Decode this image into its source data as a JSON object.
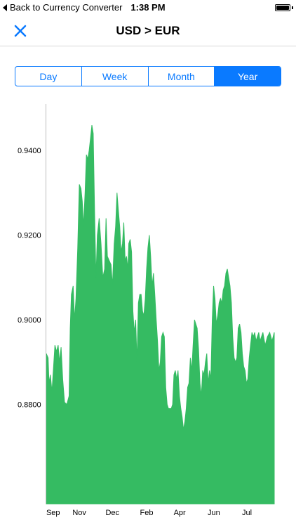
{
  "status_bar": {
    "back_label": "Back to Currency Converter",
    "time": "1:38 PM"
  },
  "nav": {
    "title": "USD > EUR"
  },
  "segments": [
    {
      "label": "Day",
      "selected": false
    },
    {
      "label": "Week",
      "selected": false
    },
    {
      "label": "Month",
      "selected": false
    },
    {
      "label": "Year",
      "selected": true
    }
  ],
  "colors": {
    "accent": "#0a7aff",
    "area_fill": "#35bb62"
  },
  "chart_data": {
    "type": "area",
    "y_ticks": [
      "0.9400",
      "0.9200",
      "0.9000",
      "0.8800"
    ],
    "y_tick_values": [
      0.94,
      0.92,
      0.9,
      0.88
    ],
    "ylim": [
      0.8565,
      0.951
    ],
    "x_ticks": [
      "Sep",
      "Nov",
      "Dec",
      "Feb",
      "Apr",
      "Jun",
      "Jul"
    ],
    "x_tick_positions": [
      0.03,
      0.145,
      0.29,
      0.44,
      0.585,
      0.735,
      0.88
    ],
    "series": [
      {
        "points": [
          [
            0.0,
            0.892
          ],
          [
            0.008,
            0.891
          ],
          [
            0.012,
            0.885
          ],
          [
            0.018,
            0.887
          ],
          [
            0.025,
            0.883
          ],
          [
            0.032,
            0.889
          ],
          [
            0.038,
            0.894
          ],
          [
            0.045,
            0.8925
          ],
          [
            0.052,
            0.894
          ],
          [
            0.058,
            0.89
          ],
          [
            0.065,
            0.8935
          ],
          [
            0.072,
            0.886
          ],
          [
            0.08,
            0.8805
          ],
          [
            0.09,
            0.88
          ],
          [
            0.1,
            0.882
          ],
          [
            0.105,
            0.898
          ],
          [
            0.11,
            0.906
          ],
          [
            0.118,
            0.908
          ],
          [
            0.124,
            0.9
          ],
          [
            0.13,
            0.905
          ],
          [
            0.138,
            0.917
          ],
          [
            0.145,
            0.932
          ],
          [
            0.152,
            0.931
          ],
          [
            0.158,
            0.928
          ],
          [
            0.163,
            0.922
          ],
          [
            0.17,
            0.93
          ],
          [
            0.176,
            0.939
          ],
          [
            0.182,
            0.938
          ],
          [
            0.188,
            0.94
          ],
          [
            0.194,
            0.943
          ],
          [
            0.2,
            0.946
          ],
          [
            0.206,
            0.944
          ],
          [
            0.212,
            0.925
          ],
          [
            0.218,
            0.91
          ],
          [
            0.224,
            0.92
          ],
          [
            0.232,
            0.924
          ],
          [
            0.24,
            0.918
          ],
          [
            0.248,
            0.91
          ],
          [
            0.256,
            0.912
          ],
          [
            0.262,
            0.924
          ],
          [
            0.268,
            0.915
          ],
          [
            0.276,
            0.914
          ],
          [
            0.284,
            0.913
          ],
          [
            0.29,
            0.908
          ],
          [
            0.298,
            0.918
          ],
          [
            0.304,
            0.922
          ],
          [
            0.31,
            0.93
          ],
          [
            0.316,
            0.926
          ],
          [
            0.322,
            0.922
          ],
          [
            0.328,
            0.916
          ],
          [
            0.334,
            0.918
          ],
          [
            0.34,
            0.923
          ],
          [
            0.346,
            0.914
          ],
          [
            0.352,
            0.915
          ],
          [
            0.358,
            0.912
          ],
          [
            0.362,
            0.918
          ],
          [
            0.368,
            0.919
          ],
          [
            0.374,
            0.916
          ],
          [
            0.38,
            0.902
          ],
          [
            0.386,
            0.897
          ],
          [
            0.392,
            0.9
          ],
          [
            0.398,
            0.89
          ],
          [
            0.404,
            0.904
          ],
          [
            0.41,
            0.906
          ],
          [
            0.416,
            0.906
          ],
          [
            0.422,
            0.902
          ],
          [
            0.428,
            0.901
          ],
          [
            0.434,
            0.905
          ],
          [
            0.44,
            0.912
          ],
          [
            0.446,
            0.917
          ],
          [
            0.452,
            0.92
          ],
          [
            0.458,
            0.915
          ],
          [
            0.464,
            0.908
          ],
          [
            0.47,
            0.911
          ],
          [
            0.476,
            0.906
          ],
          [
            0.482,
            0.9
          ],
          [
            0.488,
            0.895
          ],
          [
            0.494,
            0.888
          ],
          [
            0.5,
            0.89
          ],
          [
            0.506,
            0.896
          ],
          [
            0.512,
            0.897
          ],
          [
            0.518,
            0.896
          ],
          [
            0.524,
            0.884
          ],
          [
            0.53,
            0.88
          ],
          [
            0.536,
            0.879
          ],
          [
            0.542,
            0.879
          ],
          [
            0.548,
            0.879
          ],
          [
            0.554,
            0.88
          ],
          [
            0.56,
            0.887
          ],
          [
            0.566,
            0.888
          ],
          [
            0.572,
            0.886
          ],
          [
            0.578,
            0.888
          ],
          [
            0.584,
            0.882
          ],
          [
            0.59,
            0.879
          ],
          [
            0.596,
            0.877
          ],
          [
            0.602,
            0.874
          ],
          [
            0.608,
            0.876
          ],
          [
            0.614,
            0.879
          ],
          [
            0.62,
            0.884
          ],
          [
            0.626,
            0.885
          ],
          [
            0.632,
            0.891
          ],
          [
            0.638,
            0.888
          ],
          [
            0.644,
            0.894
          ],
          [
            0.65,
            0.9
          ],
          [
            0.656,
            0.899
          ],
          [
            0.662,
            0.898
          ],
          [
            0.668,
            0.893
          ],
          [
            0.674,
            0.885
          ],
          [
            0.68,
            0.882
          ],
          [
            0.686,
            0.888
          ],
          [
            0.692,
            0.887
          ],
          [
            0.698,
            0.89
          ],
          [
            0.704,
            0.892
          ],
          [
            0.71,
            0.885
          ],
          [
            0.716,
            0.888
          ],
          [
            0.722,
            0.886
          ],
          [
            0.728,
            0.9
          ],
          [
            0.734,
            0.908
          ],
          [
            0.74,
            0.905
          ],
          [
            0.746,
            0.899
          ],
          [
            0.752,
            0.901
          ],
          [
            0.758,
            0.904
          ],
          [
            0.764,
            0.905
          ],
          [
            0.77,
            0.904
          ],
          [
            0.776,
            0.907
          ],
          [
            0.782,
            0.908
          ],
          [
            0.788,
            0.911
          ],
          [
            0.794,
            0.912
          ],
          [
            0.8,
            0.91
          ],
          [
            0.806,
            0.908
          ],
          [
            0.812,
            0.904
          ],
          [
            0.818,
            0.896
          ],
          [
            0.824,
            0.891
          ],
          [
            0.83,
            0.89
          ],
          [
            0.836,
            0.891
          ],
          [
            0.842,
            0.898
          ],
          [
            0.848,
            0.899
          ],
          [
            0.854,
            0.897
          ],
          [
            0.86,
            0.892
          ],
          [
            0.866,
            0.889
          ],
          [
            0.872,
            0.888
          ],
          [
            0.878,
            0.885
          ],
          [
            0.884,
            0.886
          ],
          [
            0.89,
            0.891
          ],
          [
            0.896,
            0.894
          ],
          [
            0.902,
            0.897
          ],
          [
            0.908,
            0.896
          ],
          [
            0.914,
            0.897
          ],
          [
            0.92,
            0.895
          ],
          [
            0.926,
            0.896
          ],
          [
            0.932,
            0.897
          ],
          [
            0.938,
            0.895
          ],
          [
            0.944,
            0.896
          ],
          [
            0.95,
            0.897
          ],
          [
            0.96,
            0.894
          ],
          [
            0.97,
            0.896
          ],
          [
            0.98,
            0.897
          ],
          [
            0.99,
            0.895
          ],
          [
            1.0,
            0.897
          ]
        ]
      }
    ]
  }
}
